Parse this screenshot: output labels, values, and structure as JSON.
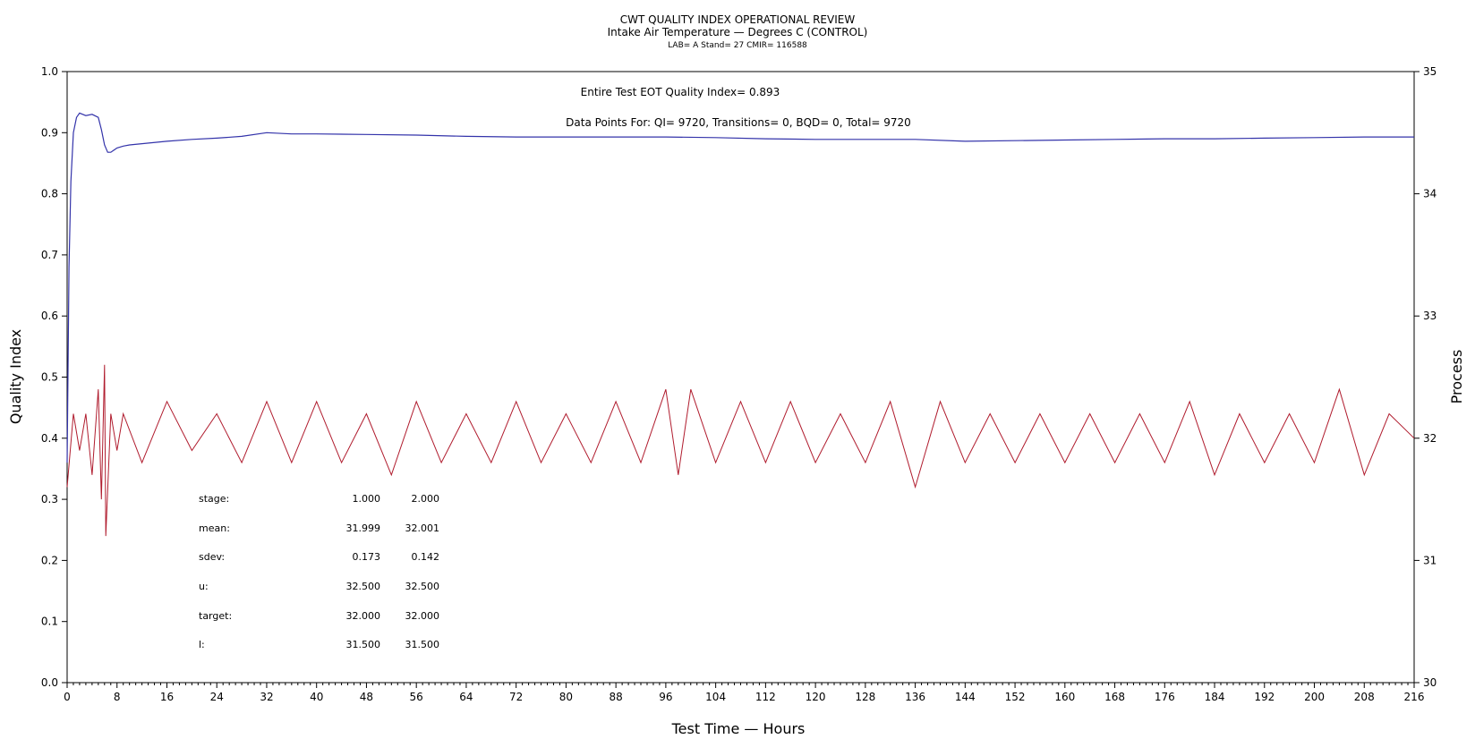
{
  "chart_data": {
    "type": "line",
    "title": "CWT QUALITY INDEX OPERATIONAL REVIEW",
    "subtitle": "Intake Air Temperature — Degrees C (CONTROL)",
    "subsubtitle": "LAB= A Stand= 27 CMIR= 116588",
    "xlabel": "Test Time — Hours",
    "ylabel": "Quality Index",
    "y2label": "Process",
    "xlim": [
      0,
      216
    ],
    "ylim": [
      0,
      1
    ],
    "y2lim": [
      30,
      35
    ],
    "xticks": [
      "0",
      "8",
      "16",
      "24",
      "32",
      "40",
      "48",
      "56",
      "64",
      "72",
      "80",
      "88",
      "96",
      "104",
      "112",
      "120",
      "128",
      "136",
      "144",
      "152",
      "160",
      "168",
      "176",
      "184",
      "192",
      "200",
      "208",
      "216"
    ],
    "yticks": [
      "0.0",
      "0.1",
      "0.2",
      "0.3",
      "0.4",
      "0.5",
      "0.6",
      "0.7",
      "0.8",
      "0.9",
      "1.0"
    ],
    "y2ticks": [
      "30",
      "31",
      "32",
      "33",
      "34",
      "35"
    ],
    "annotations": {
      "eot": "Entire Test EOT Quality Index=   0.893",
      "points": "Data Points For: QI=  9720, Transitions=     0, BQD=     0, Total=  9720"
    },
    "stats_table": {
      "rows": [
        {
          "label": "stage:",
          "values": [
            "1.000",
            "2.000"
          ]
        },
        {
          "label": "mean:",
          "values": [
            "31.999",
            "32.001"
          ]
        },
        {
          "label": "sdev:",
          "values": [
            "0.173",
            "0.142"
          ]
        },
        {
          "label": "u:",
          "values": [
            "32.500",
            "32.500"
          ]
        },
        {
          "label": "target:",
          "values": [
            "32.000",
            "32.000"
          ]
        },
        {
          "label": "l:",
          "values": [
            "31.500",
            "31.500"
          ]
        }
      ]
    },
    "series": [
      {
        "axis": "left",
        "color": "#3333aa",
        "x": [
          0,
          0.3,
          0.6,
          1,
          1.5,
          2,
          3,
          4,
          5,
          5.5,
          6,
          6.5,
          7,
          8,
          9,
          10,
          12,
          16,
          20,
          24,
          28,
          32,
          36,
          40,
          48,
          56,
          64,
          72,
          80,
          88,
          96,
          104,
          112,
          120,
          128,
          136,
          144,
          152,
          160,
          168,
          176,
          184,
          192,
          200,
          208,
          216
        ],
        "values": [
          0.36,
          0.68,
          0.82,
          0.9,
          0.925,
          0.932,
          0.928,
          0.93,
          0.925,
          0.905,
          0.88,
          0.868,
          0.868,
          0.875,
          0.878,
          0.88,
          0.882,
          0.886,
          0.889,
          0.891,
          0.894,
          0.9,
          0.898,
          0.898,
          0.897,
          0.896,
          0.894,
          0.893,
          0.893,
          0.893,
          0.893,
          0.892,
          0.89,
          0.889,
          0.889,
          0.889,
          0.886,
          0.887,
          0.888,
          0.889,
          0.89,
          0.89,
          0.891,
          0.892,
          0.893,
          0.893
        ]
      },
      {
        "axis": "right",
        "color": "#b01c2e",
        "x": [
          0,
          1,
          2,
          3,
          4,
          5,
          5.5,
          6,
          6.2,
          7,
          8,
          9,
          12,
          16,
          20,
          24,
          28,
          32,
          36,
          40,
          44,
          48,
          52,
          56,
          60,
          64,
          68,
          72,
          76,
          80,
          84,
          88,
          92,
          96,
          98,
          100,
          104,
          108,
          112,
          116,
          120,
          124,
          128,
          132,
          136,
          140,
          144,
          148,
          152,
          156,
          160,
          164,
          168,
          172,
          176,
          180,
          184,
          188,
          192,
          196,
          200,
          204,
          208,
          212,
          216
        ],
        "values": [
          31.6,
          32.2,
          31.9,
          32.2,
          31.7,
          32.4,
          31.5,
          32.6,
          31.2,
          32.2,
          31.9,
          32.2,
          31.8,
          32.3,
          31.9,
          32.2,
          31.8,
          32.3,
          31.8,
          32.3,
          31.8,
          32.2,
          31.7,
          32.3,
          31.8,
          32.2,
          31.8,
          32.3,
          31.8,
          32.2,
          31.8,
          32.3,
          31.8,
          32.4,
          31.7,
          32.4,
          31.8,
          32.3,
          31.8,
          32.3,
          31.8,
          32.2,
          31.8,
          32.3,
          31.6,
          32.3,
          31.8,
          32.2,
          31.8,
          32.2,
          31.8,
          32.2,
          31.8,
          32.2,
          31.8,
          32.3,
          31.7,
          32.2,
          31.8,
          32.2,
          31.8,
          32.4,
          31.7,
          32.2,
          32.0
        ]
      }
    ]
  }
}
